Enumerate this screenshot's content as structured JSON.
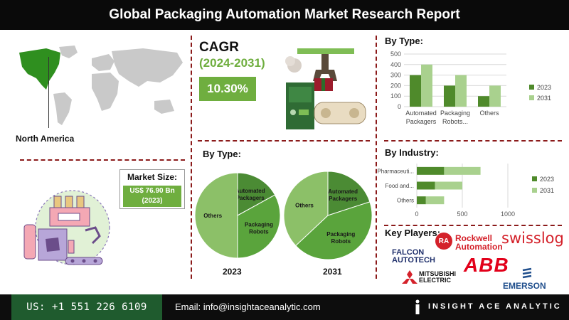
{
  "header": {
    "title": "Global Packaging Automation Market Research Report"
  },
  "region": {
    "label": "North America"
  },
  "cagr": {
    "label": "CAGR",
    "period": "(2024-2031)",
    "value": "10.30%"
  },
  "market_size": {
    "label": "Market Size:",
    "value_line1": "US$ 76.90 Bn",
    "value_line2": "(2023)"
  },
  "sections": {
    "by_type_left": "By Type:",
    "by_type_right": "By Type:",
    "by_industry": "By Industry:",
    "key_players": "Key Players:"
  },
  "key_players": {
    "rockwell_line1": "Rockwell",
    "rockwell_line2": "Automation",
    "swisslog": "swisslog",
    "falcon_line1": "FALCON",
    "falcon_line2": "AUTOTECH",
    "abb": "ABB",
    "mitsubishi_line1": "MITSUBISHI",
    "mitsubishi_line2": "ELECTRIC",
    "emerson": "EMERSON"
  },
  "footer": {
    "phone": "US: +1 551 226 6109",
    "email": "Email: info@insightaceanalytic.com",
    "brand": "INSIGHT ACE ANALYTIC"
  },
  "colors": {
    "dark_green": "#4f8a2b",
    "light_green": "#a9d18e",
    "accent_green": "#6fae3f",
    "divider_red": "#8b1a1a",
    "map_gray": "#c9c9c9",
    "map_highlight": "#2f8f1f"
  },
  "chart_data": [
    {
      "id": "type_bar",
      "type": "bar",
      "title": "By Type:",
      "categories": [
        "Automated Packagers",
        "Packaging Robots...",
        "Others"
      ],
      "category_lines": [
        [
          "Automated",
          "Packagers"
        ],
        [
          "Packaging",
          "Robots..."
        ],
        [
          "Others"
        ]
      ],
      "series": [
        {
          "name": "2023",
          "color": "#4f8a2b",
          "values": [
            300,
            200,
            100
          ]
        },
        {
          "name": "2031",
          "color": "#a9d18e",
          "values": [
            400,
            300,
            200
          ]
        }
      ],
      "ylim": [
        0,
        500
      ],
      "yticks": [
        0,
        100,
        200,
        300,
        400,
        500
      ],
      "grid": true,
      "legend": "right"
    },
    {
      "id": "industry_bar",
      "type": "bar",
      "orientation": "horizontal",
      "title": "By Industry:",
      "categories": [
        "Pharmaceuti...",
        "Food and...",
        "Others"
      ],
      "series": [
        {
          "name": "2023",
          "color": "#4f8a2b",
          "values": [
            300,
            200,
            100
          ]
        },
        {
          "name": "2031",
          "color": "#a9d18e",
          "values": [
            400,
            300,
            200
          ]
        }
      ],
      "stacked": true,
      "xlim": [
        0,
        1000
      ],
      "xticks": [
        0,
        500,
        1000
      ],
      "grid": true,
      "legend": "right"
    },
    {
      "id": "pie_2023",
      "type": "pie",
      "title": "2023",
      "labels": [
        "Automated Packagers",
        "Packaging Robots",
        "Others"
      ],
      "label_lines": [
        [
          "Automated",
          "Packagers"
        ],
        [
          "Packaging",
          "Robots"
        ],
        [
          "Others"
        ]
      ],
      "values": [
        17,
        33,
        50
      ],
      "colors": [
        "#4b8b34",
        "#5aa43c",
        "#8cc068"
      ]
    },
    {
      "id": "pie_2031",
      "type": "pie",
      "title": "2031",
      "labels": [
        "Automated Packagers",
        "Packaging Robots",
        "Others"
      ],
      "label_lines": [
        [
          "Automated",
          "Packagers"
        ],
        [
          "Packaging",
          "Robots"
        ],
        [
          "Others"
        ]
      ],
      "values": [
        20,
        43,
        37
      ],
      "colors": [
        "#4b8b34",
        "#5aa43c",
        "#8cc068"
      ]
    }
  ]
}
